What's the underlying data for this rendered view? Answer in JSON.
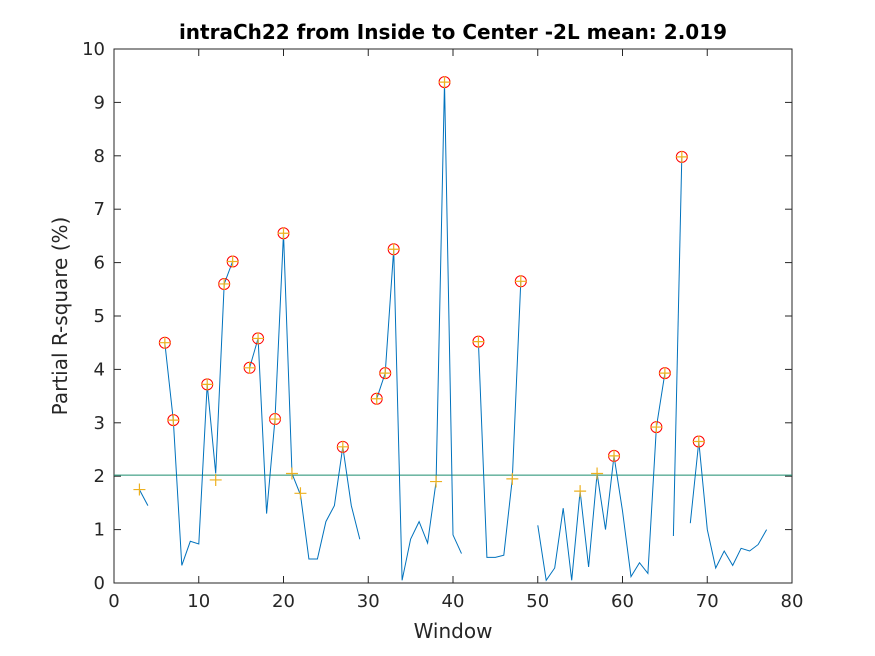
{
  "chart_data": {
    "type": "line",
    "title": "intraCh22 from Inside to Center -2L mean: 2.019",
    "xlabel": "Window",
    "ylabel": "Partial R-square (%)",
    "xlim": [
      0,
      80
    ],
    "ylim": [
      0,
      10
    ],
    "xticks": [
      0,
      10,
      20,
      30,
      40,
      50,
      60,
      70,
      80
    ],
    "yticks": [
      0,
      1,
      2,
      3,
      4,
      5,
      6,
      7,
      8,
      9,
      10
    ],
    "grid": false,
    "mean_line": 2.019,
    "series": [
      {
        "role": "line",
        "color": "#0072BD",
        "points": [
          [
            3,
            1.75
          ],
          [
            4,
            1.45
          ],
          [
            6,
            4.5
          ],
          [
            7,
            3.05
          ],
          [
            8,
            0.33
          ],
          [
            9,
            0.78
          ],
          [
            10,
            0.73
          ],
          [
            11,
            3.72
          ],
          [
            12,
            2.05
          ],
          [
            13,
            5.6
          ],
          [
            14,
            6.02
          ],
          [
            16,
            4.03
          ],
          [
            17,
            4.58
          ],
          [
            18,
            1.3
          ],
          [
            19,
            3.07
          ],
          [
            20,
            6.55
          ],
          [
            21,
            2.05
          ],
          [
            22,
            1.65
          ],
          [
            23,
            0.45
          ],
          [
            24,
            0.45
          ],
          [
            25,
            1.15
          ],
          [
            26,
            1.45
          ],
          [
            27,
            2.55
          ],
          [
            28,
            1.45
          ],
          [
            29,
            0.82
          ],
          [
            31,
            3.45
          ],
          [
            32,
            3.93
          ],
          [
            33,
            6.25
          ],
          [
            34,
            0.05
          ],
          [
            35,
            0.82
          ],
          [
            36,
            1.15
          ],
          [
            37,
            0.75
          ],
          [
            38,
            1.9
          ],
          [
            39,
            9.38
          ],
          [
            40,
            0.9
          ],
          [
            41,
            0.55
          ],
          [
            43,
            4.52
          ],
          [
            44,
            0.48
          ],
          [
            45,
            0.48
          ],
          [
            46,
            0.52
          ],
          [
            47,
            1.95
          ],
          [
            48,
            5.65
          ],
          [
            50,
            1.08
          ],
          [
            51,
            0.05
          ],
          [
            52,
            0.28
          ],
          [
            53,
            1.4
          ],
          [
            54,
            0.05
          ],
          [
            55,
            1.72
          ],
          [
            56,
            0.3
          ],
          [
            57,
            2.05
          ],
          [
            58,
            1.0
          ],
          [
            59,
            2.38
          ],
          [
            60,
            1.35
          ],
          [
            61,
            0.12
          ],
          [
            62,
            0.38
          ],
          [
            63,
            0.18
          ],
          [
            64,
            2.92
          ],
          [
            65,
            3.93
          ],
          [
            66,
            0.88
          ],
          [
            67,
            7.98
          ],
          [
            68,
            1.12
          ],
          [
            69,
            2.65
          ],
          [
            70,
            1.0
          ],
          [
            71,
            0.28
          ],
          [
            72,
            0.6
          ],
          [
            73,
            0.33
          ],
          [
            74,
            0.65
          ],
          [
            75,
            0.6
          ],
          [
            76,
            0.72
          ],
          [
            77,
            1.0
          ]
        ],
        "gaps_after": [
          4,
          14,
          29,
          41,
          48,
          65,
          67
        ]
      },
      {
        "role": "red-circle-markers",
        "color": "#FF0000",
        "points": [
          [
            6,
            4.5
          ],
          [
            7,
            3.05
          ],
          [
            11,
            3.72
          ],
          [
            13,
            5.6
          ],
          [
            14,
            6.02
          ],
          [
            16,
            4.03
          ],
          [
            17,
            4.58
          ],
          [
            19,
            3.07
          ],
          [
            20,
            6.55
          ],
          [
            27,
            2.55
          ],
          [
            31,
            3.45
          ],
          [
            32,
            3.93
          ],
          [
            33,
            6.25
          ],
          [
            39,
            9.38
          ],
          [
            43,
            4.52
          ],
          [
            48,
            5.65
          ],
          [
            59,
            2.38
          ],
          [
            64,
            2.92
          ],
          [
            65,
            3.93
          ],
          [
            67,
            7.98
          ],
          [
            69,
            2.65
          ]
        ]
      },
      {
        "role": "plus-markers",
        "color": "#EDB120",
        "points": [
          [
            3,
            1.75
          ],
          [
            6,
            4.5
          ],
          [
            7,
            3.05
          ],
          [
            11,
            3.72
          ],
          [
            12,
            1.93
          ],
          [
            13,
            5.6
          ],
          [
            14,
            6.02
          ],
          [
            16,
            4.03
          ],
          [
            17,
            4.58
          ],
          [
            19,
            3.07
          ],
          [
            20,
            6.55
          ],
          [
            21,
            2.05
          ],
          [
            22,
            1.68
          ],
          [
            27,
            2.55
          ],
          [
            31,
            3.45
          ],
          [
            32,
            3.93
          ],
          [
            33,
            6.25
          ],
          [
            38,
            1.9
          ],
          [
            39,
            9.38
          ],
          [
            43,
            4.52
          ],
          [
            47,
            1.95
          ],
          [
            48,
            5.65
          ],
          [
            55,
            1.72
          ],
          [
            57,
            2.05
          ],
          [
            59,
            2.38
          ],
          [
            64,
            2.92
          ],
          [
            65,
            3.93
          ],
          [
            67,
            7.98
          ],
          [
            69,
            2.65
          ]
        ]
      }
    ],
    "colors": {
      "line": "#0072BD",
      "mean_line": "#1A8C6E",
      "circle": "#FF0000",
      "plus": "#EDB120",
      "axis": "#262626"
    }
  }
}
